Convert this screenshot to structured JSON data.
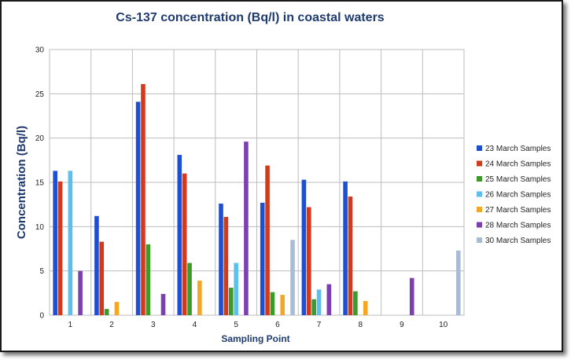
{
  "chart_data": {
    "type": "bar",
    "title": "Cs-137 concentration (Bq/l) in coastal waters",
    "xlabel": "Sampling Point",
    "ylabel": "Concentration (Bq/l)",
    "ylim": [
      0,
      30
    ],
    "yticks": [
      0,
      5,
      10,
      15,
      20,
      25,
      30
    ],
    "categories": [
      "1",
      "2",
      "3",
      "4",
      "5",
      "6",
      "7",
      "8",
      "9",
      "10"
    ],
    "grid": true,
    "legend_position": "right",
    "series": [
      {
        "name": "23 March Samples",
        "color": "#1f4fd1",
        "values": [
          16.3,
          11.2,
          24.1,
          18.1,
          12.6,
          12.7,
          15.3,
          15.1,
          null,
          null
        ]
      },
      {
        "name": "24 March Samples",
        "color": "#d23a1e",
        "values": [
          15.1,
          8.3,
          26.1,
          16.0,
          11.1,
          16.9,
          12.2,
          13.4,
          null,
          null
        ]
      },
      {
        "name": "25 March Samples",
        "color": "#3c9a2a",
        "values": [
          null,
          0.7,
          8.0,
          5.9,
          3.1,
          2.6,
          1.8,
          2.7,
          null,
          null
        ]
      },
      {
        "name": "26 March Samples",
        "color": "#5bc0f0",
        "values": [
          16.3,
          null,
          null,
          null,
          5.9,
          null,
          2.9,
          null,
          null,
          null
        ]
      },
      {
        "name": "27 March Samples",
        "color": "#f5a623",
        "values": [
          null,
          1.5,
          null,
          3.9,
          null,
          2.3,
          null,
          1.6,
          null,
          null
        ]
      },
      {
        "name": "28 March Samples",
        "color": "#7b3fb0",
        "values": [
          5.0,
          null,
          2.4,
          null,
          19.6,
          null,
          3.5,
          null,
          4.2,
          null
        ]
      },
      {
        "name": "30 March Samples",
        "color": "#a9bcd6",
        "values": [
          null,
          null,
          null,
          null,
          null,
          8.5,
          null,
          null,
          null,
          7.3
        ]
      }
    ]
  }
}
